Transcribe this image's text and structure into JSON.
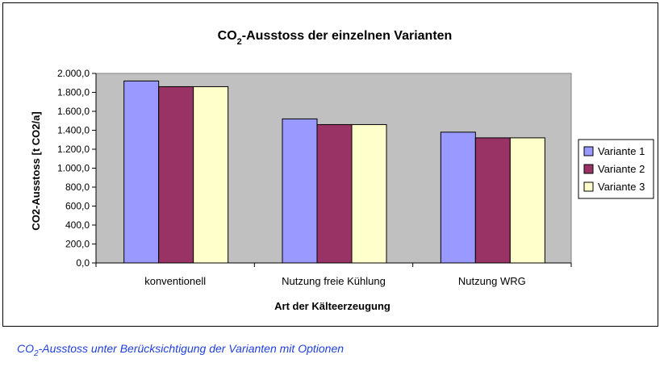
{
  "caption": {
    "prefix": "CO",
    "sub": "2",
    "rest": "-Ausstoss unter Berücksichtigung der Varianten mit Optionen"
  },
  "colors": {
    "plot_area": "#c0c0c0",
    "series": [
      "#9999ff",
      "#993366",
      "#ffffcc"
    ],
    "caption": "#1f3fd9"
  },
  "chart_data": {
    "type": "bar",
    "title": {
      "prefix": "CO",
      "sub": "2",
      "rest": "-Ausstoss der einzelnen Varianten"
    },
    "xlabel": "Art der Kälteerzeugung",
    "ylabel": "CO2-Ausstoss [t CO2/a]",
    "ylim": [
      0,
      2000
    ],
    "ytick_labels": [
      "0,0",
      "200,0",
      "400,0",
      "600,0",
      "800,0",
      "1.000,0",
      "1.200,0",
      "1.400,0",
      "1.600,0",
      "1.800,0",
      "2.000,0"
    ],
    "categories": [
      "konventionell",
      "Nutzung freie Kühlung",
      "Nutzung WRG"
    ],
    "series": [
      {
        "name": "Variante 1",
        "values": [
          1920,
          1520,
          1380
        ]
      },
      {
        "name": "Variante 2",
        "values": [
          1860,
          1460,
          1320
        ]
      },
      {
        "name": "Variante 3",
        "values": [
          1860,
          1460,
          1320
        ]
      }
    ],
    "grid": false,
    "legend": "right"
  }
}
